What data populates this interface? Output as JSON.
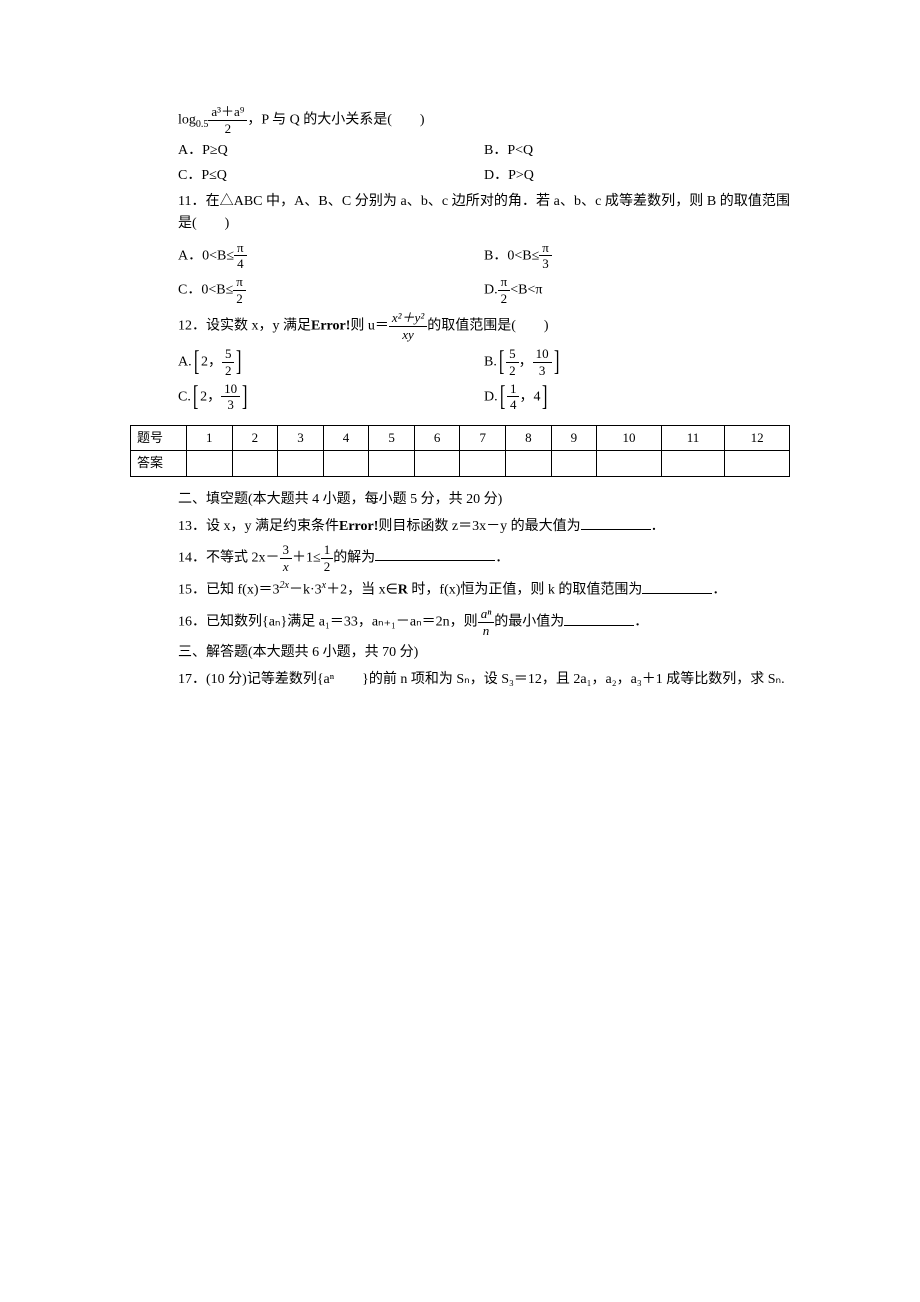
{
  "q10": {
    "prefix_log": "log",
    "log_base": "0.5",
    "frac_num": "a³＋a⁹",
    "frac_den": "2",
    "suffix": "，P 与 Q 的大小关系是(　　)",
    "optA": "A．P≥Q",
    "optB": "B．P<Q",
    "optC": "C．P≤Q",
    "optD": "D．P>Q"
  },
  "q11": {
    "stem": "11．在△ABC 中，A、B、C 分别为 a、b、c 边所对的角．若 a、b、c 成等差数列，则 B 的取值范围是(　　)",
    "optA_pre": "A．0<B≤",
    "optA_num": "π",
    "optA_den": "4",
    "optB_pre": "B．0<B≤",
    "optB_num": "π",
    "optB_den": "3",
    "optC_pre": "C．0<B≤",
    "optC_num": "π",
    "optC_den": "2",
    "optD_pre": "D.",
    "optD_num": "π",
    "optD_den": "2",
    "optD_post": "<B<π"
  },
  "q12": {
    "stem_pre": "12．设实数 x，y 满足",
    "error": "Error!",
    "stem_mid": "则 u＝",
    "frac_num": "x²＋y²",
    "frac_den": "xy",
    "stem_post": "的取值范围是(　　)",
    "optA_pre": "A.",
    "optA_a": "2",
    "optA_b_num": "5",
    "optA_b_den": "2",
    "optB_pre": "B.",
    "optB_a_num": "5",
    "optB_a_den": "2",
    "optB_b_num": "10",
    "optB_b_den": "3",
    "optC_pre": "C.",
    "optC_a": "2",
    "optC_b_num": "10",
    "optC_b_den": "3",
    "optD_pre": "D.",
    "optD_a_num": "1",
    "optD_a_den": "4",
    "optD_b": "4"
  },
  "table": {
    "header_label": "题号",
    "answer_label": "答案",
    "cols": [
      "1",
      "2",
      "3",
      "4",
      "5",
      "6",
      "7",
      "8",
      "9",
      "10",
      "11",
      "12"
    ]
  },
  "section2": {
    "title": "二、填空题(本大题共 4 小题，每小题 5 分，共 20 分)",
    "q13_pre": "13．设 x，y 满足约束条件",
    "q13_err": "Error!",
    "q13_post": "则目标函数 z＝3x－y 的最大值为",
    "q13_end": "．",
    "q14_pre": "14．不等式 2x－",
    "q14_f1_num": "3",
    "q14_f1_den": "x",
    "q14_mid": "＋1≤",
    "q14_f2_num": "1",
    "q14_f2_den": "2",
    "q14_post": "的解为",
    "q14_end": "．",
    "q15_pre": "15．已知 f(x)＝3",
    "q15_sup1": "2x",
    "q15_mid1": "－k·3",
    "q15_sup2": "x",
    "q15_mid2": "＋2，当 x∈",
    "q15_R": "R",
    "q15_post": " 时，f(x)恒为正值，则 k 的取值范围为",
    "q15_end": "．",
    "q16_pre": "16．已知数列{aₙ}满足 a₁＝33，aₙ₊₁－aₙ＝2n，则",
    "q16_num": "aⁿ",
    "q16_den": "n",
    "q16_post": "的最小值为",
    "q16_end": "．"
  },
  "section3": {
    "title": "三、解答题(本大题共 6 小题，共 70 分)",
    "q17": "17．(10 分)记等差数列{aⁿ　　}的前 n 项和为 Sₙ，设 S₃＝12，且 2a₁，a₂，a₃＋1 成等比数列，求 Sₙ."
  }
}
